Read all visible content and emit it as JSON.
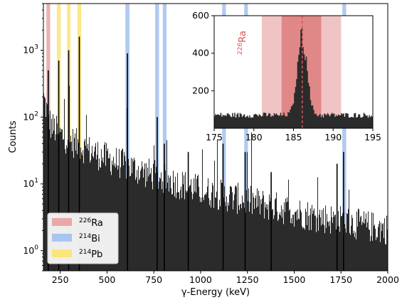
{
  "chart_data": [
    {
      "type": "histogram",
      "xlabel": "γ-Energy (keV)",
      "ylabel": "Counts",
      "yscale": "log",
      "xlim": [
        160,
        2000
      ],
      "ylim": [
        0.5,
        5000
      ],
      "x_ticks": [
        {
          "value": 250,
          "label": "250"
        },
        {
          "value": 500,
          "label": "500"
        },
        {
          "value": 750,
          "label": "750"
        },
        {
          "value": 1000,
          "label": "1000"
        },
        {
          "value": 1250,
          "label": "1250"
        },
        {
          "value": 1500,
          "label": "1500"
        },
        {
          "value": 1750,
          "label": "1750"
        },
        {
          "value": 2000,
          "label": "2000"
        }
      ],
      "y_ticks": [
        {
          "value": 1,
          "base": "10",
          "exp": "0"
        },
        {
          "value": 10,
          "base": "10",
          "exp": "1"
        },
        {
          "value": 100,
          "base": "10",
          "exp": "2"
        },
        {
          "value": 1000,
          "base": "10",
          "exp": "3"
        }
      ],
      "bar_color": "#2b2b2b",
      "background_anchors": [
        [
          160,
          200
        ],
        [
          200,
          75
        ],
        [
          250,
          55
        ],
        [
          300,
          45
        ],
        [
          350,
          38
        ],
        [
          400,
          32
        ],
        [
          500,
          24
        ],
        [
          600,
          19
        ],
        [
          700,
          15
        ],
        [
          800,
          12
        ],
        [
          1000,
          8
        ],
        [
          1200,
          6
        ],
        [
          1400,
          4.5
        ],
        [
          1600,
          3.3
        ],
        [
          1750,
          2.8
        ],
        [
          1900,
          2.3
        ],
        [
          2000,
          2.1
        ]
      ],
      "peaks": [
        {
          "energy": 186,
          "counts": 500
        },
        {
          "energy": 242,
          "counts": 700
        },
        {
          "energy": 295,
          "counts": 1000
        },
        {
          "energy": 352,
          "counts": 1600
        },
        {
          "energy": 609,
          "counts": 900
        },
        {
          "energy": 768,
          "counts": 100
        },
        {
          "energy": 806,
          "counts": 40
        },
        {
          "energy": 934,
          "counts": 30
        },
        {
          "energy": 1120,
          "counts": 40
        },
        {
          "energy": 1238,
          "counts": 30
        },
        {
          "energy": 1377,
          "counts": 15
        },
        {
          "energy": 1729,
          "counts": 20
        },
        {
          "energy": 1764,
          "counts": 30
        }
      ],
      "bands": [
        {
          "isotope": "Ra-226",
          "from": 176,
          "to": 196,
          "color": "#e8a8a8"
        },
        {
          "isotope": "Pb-214",
          "from": 232,
          "to": 252,
          "color": "#fce57a"
        },
        {
          "isotope": "Pb-214",
          "from": 286,
          "to": 305,
          "color": "#fce57a"
        },
        {
          "isotope": "Pb-214",
          "from": 342,
          "to": 362,
          "color": "#fce57a"
        },
        {
          "isotope": "Bi-214",
          "from": 598,
          "to": 620,
          "color": "#a9c4ee"
        },
        {
          "isotope": "Bi-214",
          "from": 757,
          "to": 778,
          "color": "#a9c4ee"
        },
        {
          "isotope": "Bi-214",
          "from": 798,
          "to": 818,
          "color": "#a9c4ee"
        },
        {
          "isotope": "Bi-214",
          "from": 1115,
          "to": 1135,
          "color": "#a9c4ee"
        },
        {
          "isotope": "Bi-214",
          "from": 1233,
          "to": 1253,
          "color": "#a9c4ee"
        },
        {
          "isotope": "Bi-214",
          "from": 1757,
          "to": 1778,
          "color": "#a9c4ee"
        }
      ],
      "legend": {
        "position": "lower-left",
        "entries": [
          {
            "mass": "226",
            "symbol": "Ra",
            "color": "#e8a8a8"
          },
          {
            "mass": "214",
            "symbol": "Bi",
            "color": "#a9c4ee"
          },
          {
            "mass": "214",
            "symbol": "Pb",
            "color": "#fce57a"
          }
        ]
      }
    },
    {
      "type": "histogram",
      "role": "inset",
      "xlim": [
        175,
        195
      ],
      "ylim": [
        0,
        600
      ],
      "x_ticks": [
        {
          "value": 175,
          "label": "175"
        },
        {
          "value": 180,
          "label": "180"
        },
        {
          "value": 185,
          "label": "185"
        },
        {
          "value": 190,
          "label": "190"
        },
        {
          "value": 195,
          "label": "195"
        }
      ],
      "y_ticks": [
        {
          "value": 200,
          "label": "200"
        },
        {
          "value": 400,
          "label": "400"
        },
        {
          "value": 600,
          "label": "600"
        }
      ],
      "bar_color": "#2b2b2b",
      "background_level": 70,
      "peak": {
        "center": 186.1,
        "height": 420,
        "sigma": 0.6
      },
      "light_band": [
        181,
        191
      ],
      "light_band_color": "#f0c4c4",
      "dark_band": [
        183.5,
        188.5
      ],
      "dark_band_color": "#e08888",
      "reference_line": {
        "energy": 186.1,
        "color": "#d9534f",
        "style": "dashed"
      },
      "annotation": {
        "mass": "226",
        "symbol": "Ra",
        "color": "#d9534f"
      }
    }
  ]
}
